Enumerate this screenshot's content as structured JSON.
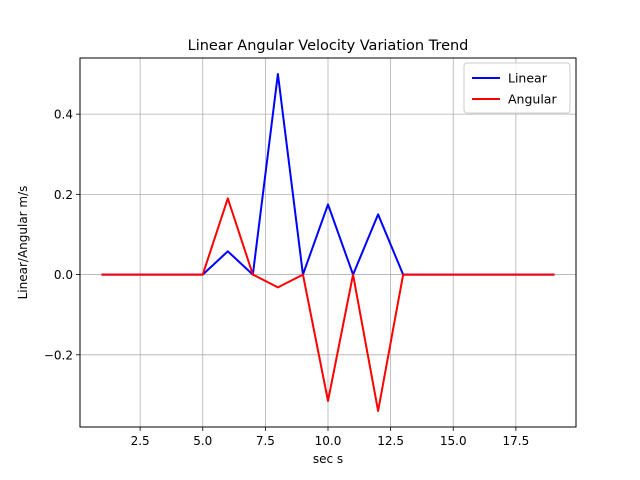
{
  "chart_data": {
    "type": "line",
    "title": "Linear Angular Velocity Variation Trend",
    "xlabel": "sec s",
    "ylabel": "Linear/Angular m/s",
    "xlim": [
      0.1,
      19.9
    ],
    "ylim": [
      -0.38,
      0.54
    ],
    "xticks": [
      2.5,
      5.0,
      7.5,
      10.0,
      12.5,
      15.0,
      17.5
    ],
    "xtick_labels": [
      "2.5",
      "5.0",
      "7.5",
      "10.0",
      "12.5",
      "15.0",
      "17.5"
    ],
    "yticks": [
      -0.2,
      0.0,
      0.2,
      0.4
    ],
    "ytick_labels": [
      "−0.2",
      "0.0",
      "0.2",
      "0.4"
    ],
    "grid": true,
    "legend": {
      "position": "top-right"
    },
    "series": [
      {
        "name": "Linear",
        "color": "#0000ff",
        "x": [
          1,
          2,
          3,
          4,
          5,
          6,
          7,
          8,
          9,
          10,
          11,
          12,
          13,
          14,
          15,
          16,
          17,
          18,
          19
        ],
        "y": [
          0.0,
          0.0,
          0.0,
          0.0,
          0.0,
          0.058,
          0.0,
          0.5,
          0.0,
          0.175,
          0.0,
          0.15,
          0.0,
          0.0,
          0.0,
          0.0,
          0.0,
          0.0,
          0.0
        ]
      },
      {
        "name": "Angular",
        "color": "#ff0000",
        "x": [
          1,
          2,
          3,
          4,
          5,
          6,
          7,
          8,
          9,
          10,
          11,
          12,
          13,
          14,
          15,
          16,
          17,
          18,
          19
        ],
        "y": [
          0.0,
          0.0,
          0.0,
          0.0,
          0.0,
          0.19,
          0.0,
          -0.032,
          0.0,
          -0.315,
          0.0,
          -0.34,
          0.0,
          0.0,
          0.0,
          0.0,
          0.0,
          0.0,
          0.0
        ]
      }
    ]
  }
}
